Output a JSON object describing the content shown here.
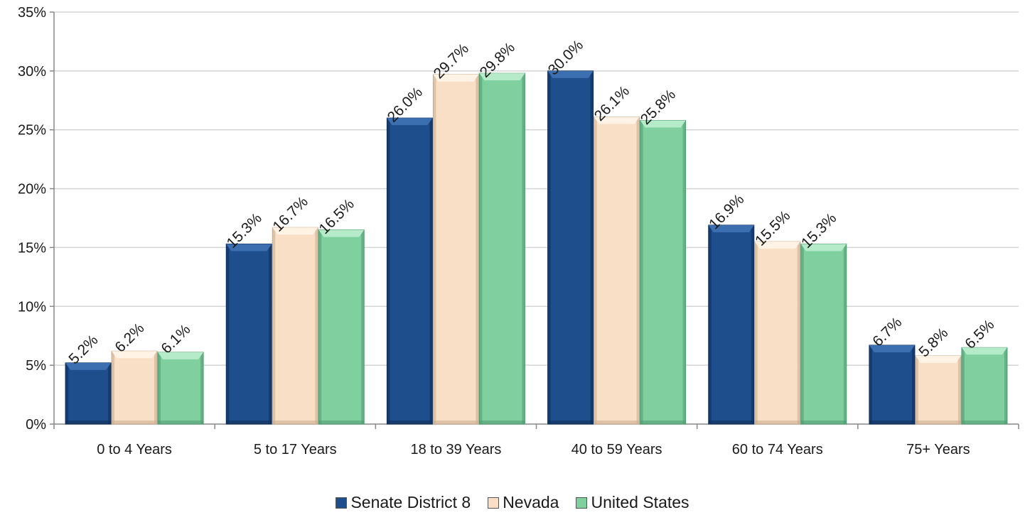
{
  "chart_data": {
    "type": "bar",
    "categories": [
      "0 to 4 Years",
      "5 to 17 Years",
      "18 to 39 Years",
      "40 to 59 Years",
      "60 to 74 Years",
      "75+ Years"
    ],
    "series": [
      {
        "name": "Senate District 8",
        "values": [
          5.2,
          15.3,
          26.0,
          30.0,
          16.9,
          6.7
        ],
        "labels": [
          "5.2%",
          "15.3%",
          "26.0%",
          "30.0%",
          "16.9%",
          "6.7%"
        ],
        "color": "#1f4e8c",
        "top_color": "#3b6fb0",
        "edge_color": "#0f2e57"
      },
      {
        "name": "Nevada",
        "values": [
          6.2,
          16.7,
          29.7,
          26.1,
          15.5,
          5.8
        ],
        "labels": [
          "6.2%",
          "16.7%",
          "29.7%",
          "26.1%",
          "15.5%",
          "5.8%"
        ],
        "color": "#f9dfc5",
        "top_color": "#fff3e6",
        "edge_color": "#c9ab8e"
      },
      {
        "name": "United States",
        "values": [
          6.1,
          16.5,
          29.8,
          25.8,
          15.3,
          6.5
        ],
        "labels": [
          "6.1%",
          "16.5%",
          "29.8%",
          "25.8%",
          "15.3%",
          "6.5%"
        ],
        "color": "#7fcf9f",
        "top_color": "#b5ebc8",
        "edge_color": "#4f9a70"
      }
    ],
    "yticks": [
      "0%",
      "5%",
      "10%",
      "15%",
      "20%",
      "25%",
      "30%",
      "35%"
    ],
    "ylim": [
      0,
      35
    ],
    "ytick_step": 5,
    "grid": true,
    "legend_position": "bottom",
    "title": "",
    "xlabel": "",
    "ylabel": ""
  }
}
